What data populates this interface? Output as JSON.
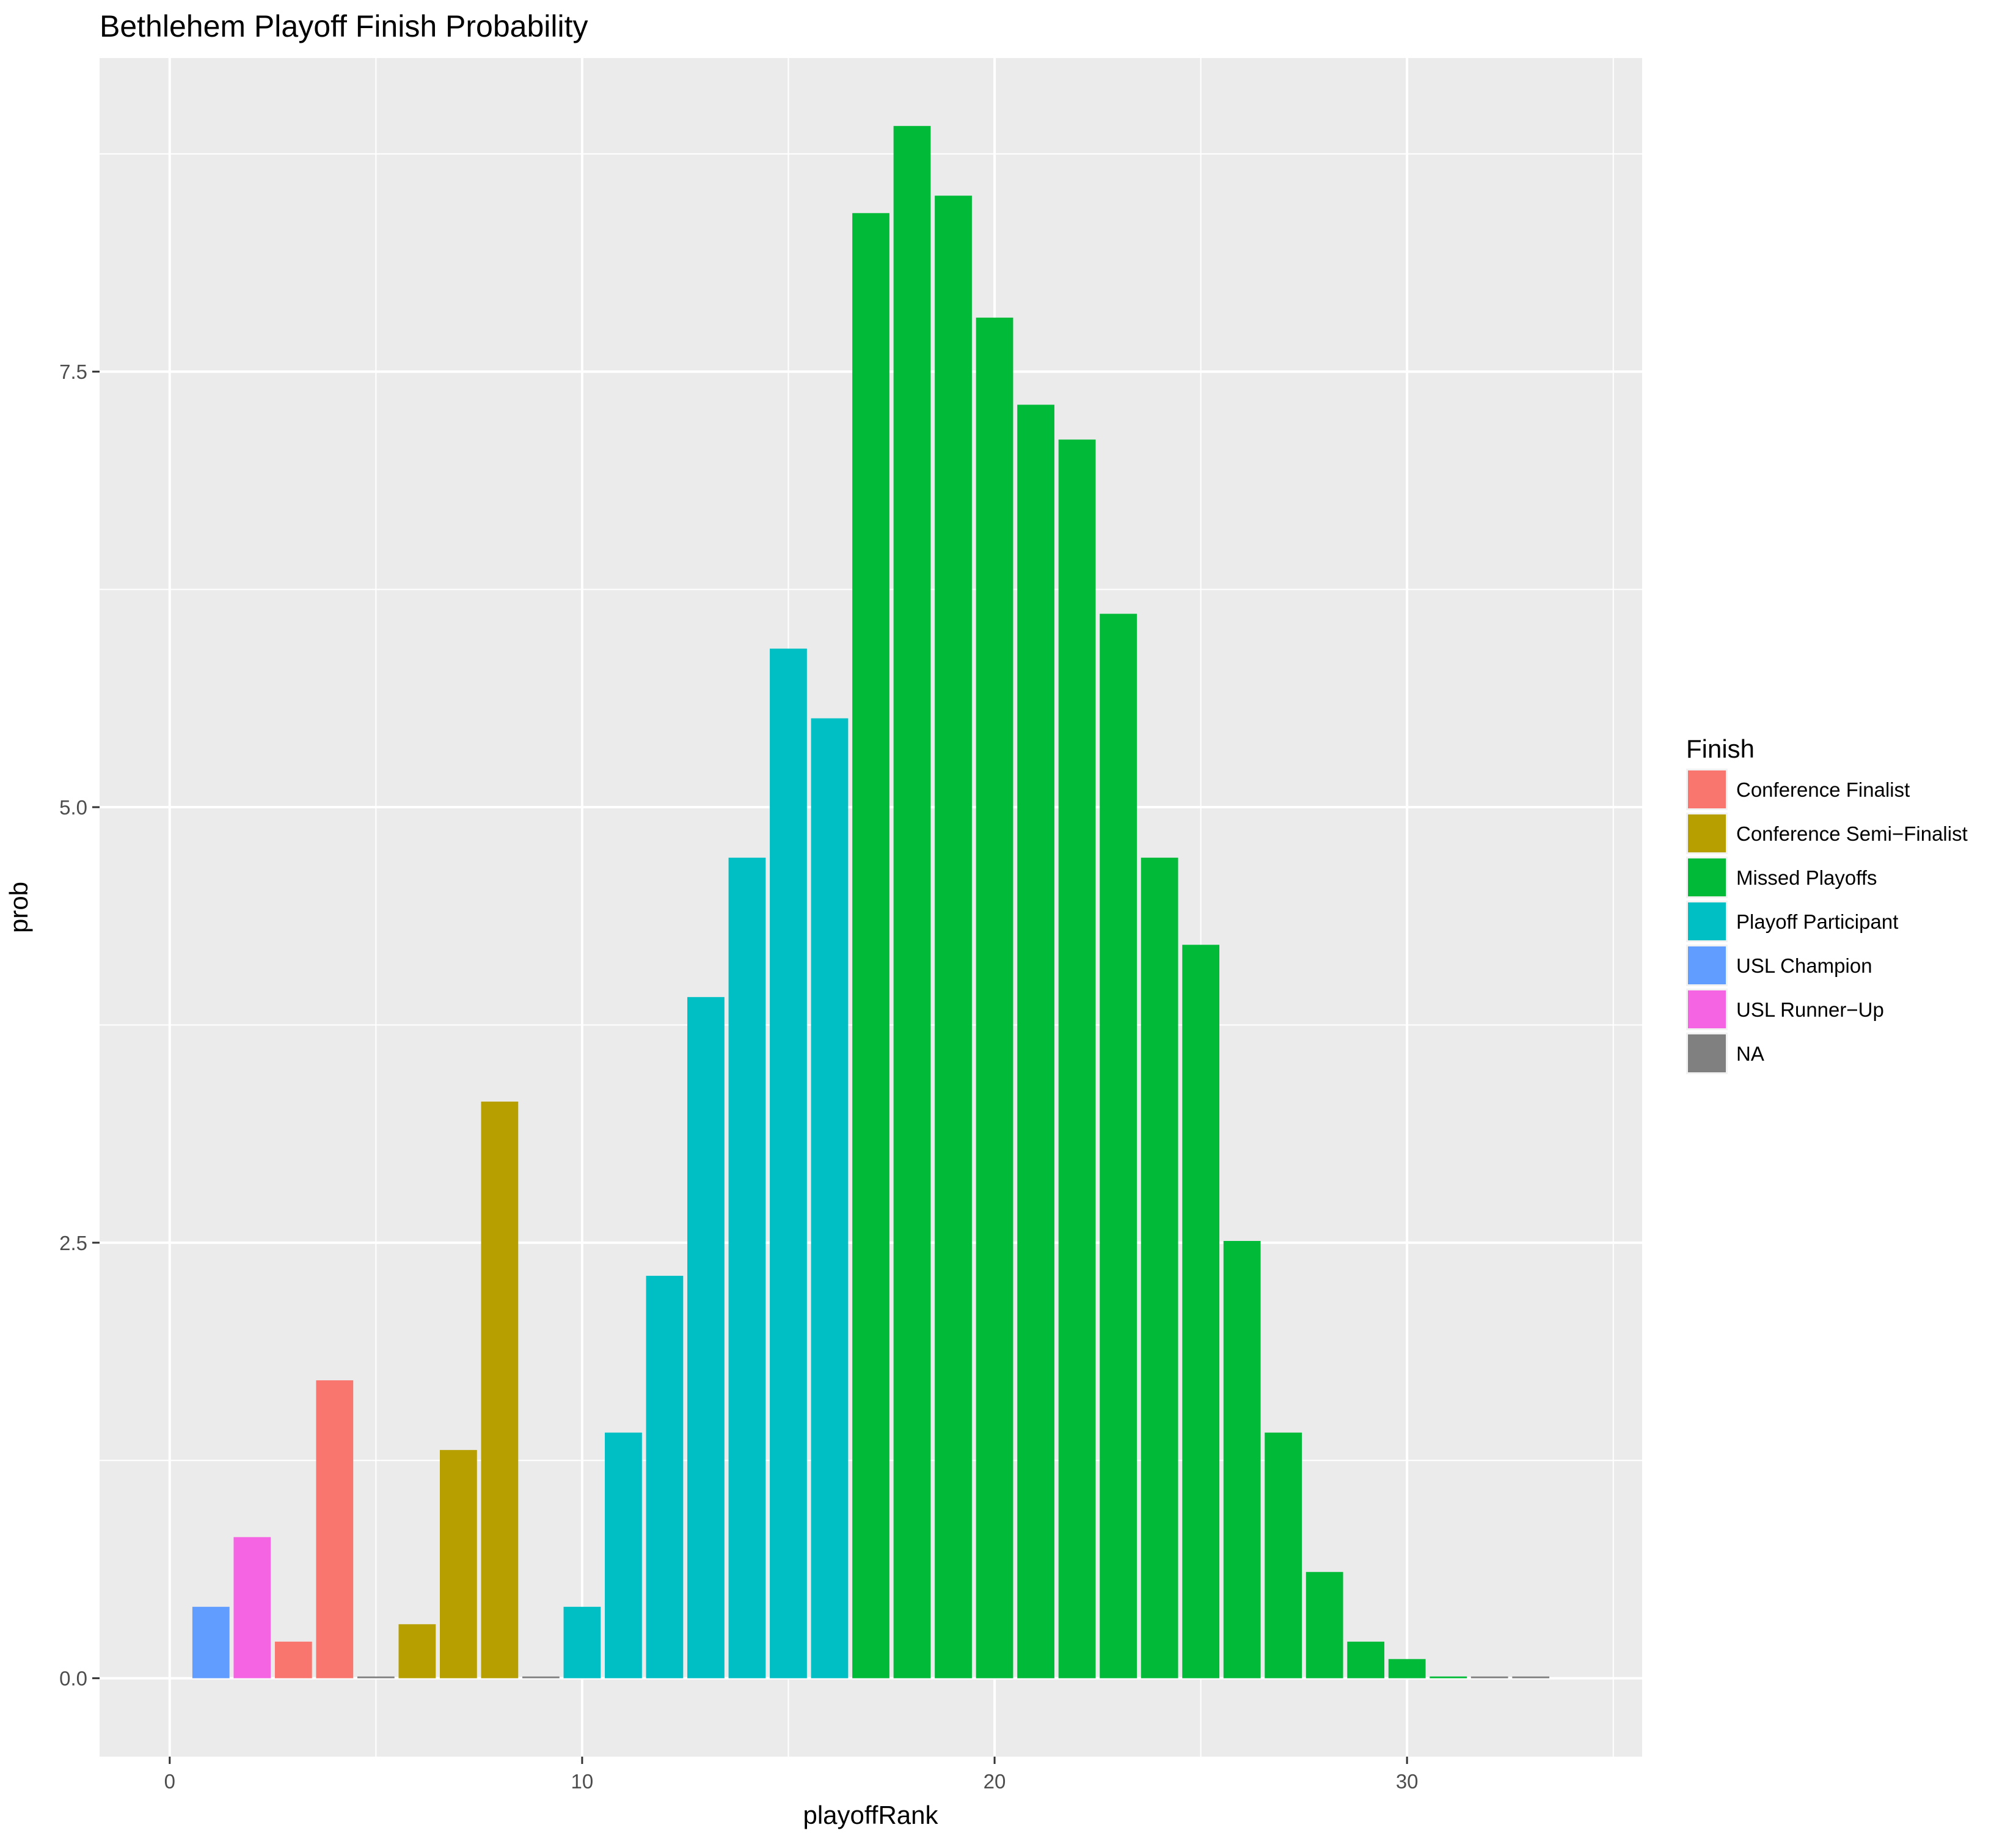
{
  "chart_data": {
    "type": "bar",
    "title": "Bethlehem Playoff Finish Probability",
    "xlabel": "playoffRank",
    "ylabel": "prob",
    "xlim": [
      -1.7,
      35.7
    ],
    "ylim": [
      -0.45,
      9.3
    ],
    "x_ticks": [
      0,
      10,
      20,
      30
    ],
    "x_tick_labels": [
      "0",
      "10",
      "20",
      "30"
    ],
    "y_ticks": [
      0,
      2.5,
      5,
      7.5
    ],
    "y_tick_labels": [
      "0.0",
      "2.5",
      "5.0",
      "7.5"
    ],
    "grid": true,
    "legend": {
      "title": "Finish",
      "position": "right",
      "entries": [
        {
          "label": "Conference Finalist",
          "color": "#F8766D"
        },
        {
          "label": "Conference Semi−Finalist",
          "color": "#B79F00"
        },
        {
          "label": "Missed Playoffs",
          "color": "#00BA38"
        },
        {
          "label": "Playoff Participant",
          "color": "#00BFC4"
        },
        {
          "label": "USL Champion",
          "color": "#619CFF"
        },
        {
          "label": "USL Runner−Up",
          "color": "#F564E3"
        },
        {
          "label": "NA",
          "color": "#808080"
        }
      ]
    },
    "bars": [
      {
        "x": 1,
        "value": 0.41,
        "finish": "USL Champion"
      },
      {
        "x": 2,
        "value": 0.81,
        "finish": "USL Runner−Up"
      },
      {
        "x": 3,
        "value": 0.21,
        "finish": "Conference Finalist"
      },
      {
        "x": 4,
        "value": 1.71,
        "finish": "Conference Finalist"
      },
      {
        "x": 5,
        "value": 0.01,
        "finish": "NA"
      },
      {
        "x": 6,
        "value": 0.31,
        "finish": "Conference Semi−Finalist"
      },
      {
        "x": 7,
        "value": 1.31,
        "finish": "Conference Semi−Finalist"
      },
      {
        "x": 8,
        "value": 3.31,
        "finish": "Conference Semi−Finalist"
      },
      {
        "x": 9,
        "value": 0.01,
        "finish": "NA"
      },
      {
        "x": 10,
        "value": 0.41,
        "finish": "Playoff Participant"
      },
      {
        "x": 11,
        "value": 1.41,
        "finish": "Playoff Participant"
      },
      {
        "x": 12,
        "value": 2.31,
        "finish": "Playoff Participant"
      },
      {
        "x": 13,
        "value": 3.91,
        "finish": "Playoff Participant"
      },
      {
        "x": 14,
        "value": 4.71,
        "finish": "Playoff Participant"
      },
      {
        "x": 15,
        "value": 5.91,
        "finish": "Playoff Participant"
      },
      {
        "x": 16,
        "value": 5.51,
        "finish": "Playoff Participant"
      },
      {
        "x": 17,
        "value": 8.41,
        "finish": "Missed Playoffs"
      },
      {
        "x": 18,
        "value": 8.91,
        "finish": "Missed Playoffs"
      },
      {
        "x": 19,
        "value": 8.51,
        "finish": "Missed Playoffs"
      },
      {
        "x": 20,
        "value": 7.81,
        "finish": "Missed Playoffs"
      },
      {
        "x": 21,
        "value": 7.31,
        "finish": "Missed Playoffs"
      },
      {
        "x": 22,
        "value": 7.11,
        "finish": "Missed Playoffs"
      },
      {
        "x": 23,
        "value": 6.11,
        "finish": "Missed Playoffs"
      },
      {
        "x": 24,
        "value": 4.71,
        "finish": "Missed Playoffs"
      },
      {
        "x": 25,
        "value": 4.21,
        "finish": "Missed Playoffs"
      },
      {
        "x": 26,
        "value": 2.51,
        "finish": "Missed Playoffs"
      },
      {
        "x": 27,
        "value": 1.41,
        "finish": "Missed Playoffs"
      },
      {
        "x": 28,
        "value": 0.61,
        "finish": "Missed Playoffs"
      },
      {
        "x": 29,
        "value": 0.21,
        "finish": "Missed Playoffs"
      },
      {
        "x": 30,
        "value": 0.11,
        "finish": "Missed Playoffs"
      },
      {
        "x": 31,
        "value": 0.01,
        "finish": "Missed Playoffs"
      },
      {
        "x": 32,
        "value": 0.01,
        "finish": "NA"
      },
      {
        "x": 33,
        "value": 0.01,
        "finish": "NA"
      }
    ]
  }
}
